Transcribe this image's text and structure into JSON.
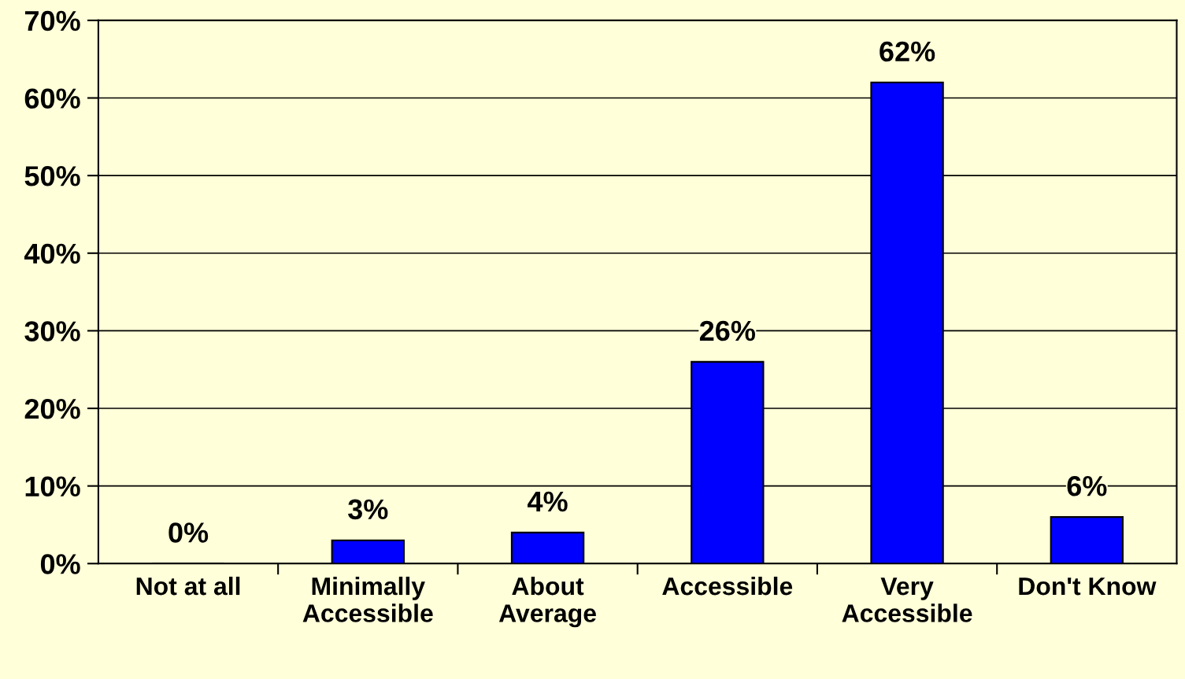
{
  "chart_data": {
    "type": "bar",
    "categories": [
      "Not at all",
      "Minimally\nAccessible",
      "About\nAverage",
      "Accessible",
      "Very\nAccessible",
      "Don't Know"
    ],
    "values": [
      0,
      3,
      4,
      26,
      62,
      6
    ],
    "value_labels": [
      "0%",
      "3%",
      "4%",
      "26%",
      "62%",
      "6%"
    ],
    "color": "#0000ff",
    "ylim": [
      0,
      70
    ],
    "yticks": [
      {
        "value": 0,
        "label": "0%"
      },
      {
        "value": 10,
        "label": "10%"
      },
      {
        "value": 20,
        "label": "20%"
      },
      {
        "value": 30,
        "label": "30%"
      },
      {
        "value": 40,
        "label": "40%"
      },
      {
        "value": 50,
        "label": "50%"
      },
      {
        "value": 60,
        "label": "60%"
      },
      {
        "value": 70,
        "label": "70%"
      }
    ],
    "grid": "y",
    "legend": false
  }
}
